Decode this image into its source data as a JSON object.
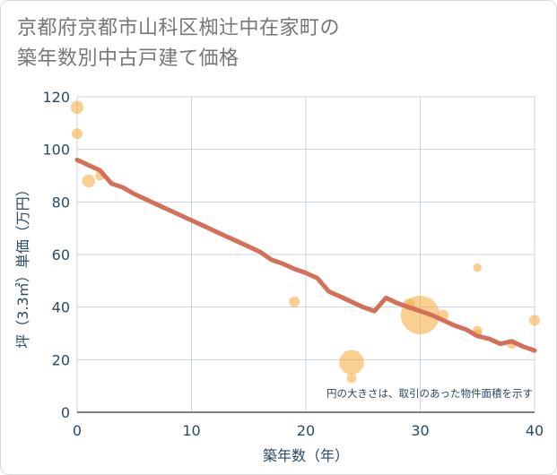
{
  "title_lines": [
    "京都府京都市山科区椥辻中在家町の",
    "築年数別中古戸建て価格"
  ],
  "colors": {
    "grid": "#c9d3dd",
    "bubble": "#f5b04a",
    "line": "#d4705a",
    "text": "#2b4a63",
    "title": "#777777"
  },
  "chart_data": {
    "type": "scatter",
    "title": "京都府京都市山科区椥辻中在家町の築年数別中古戸建て価格",
    "xlabel": "築年数（年）",
    "ylabel": "坪（3.3㎡）単価（万円）",
    "xlim": [
      0,
      40
    ],
    "ylim": [
      0,
      120
    ],
    "xticks": [
      0,
      10,
      20,
      30,
      40
    ],
    "yticks": [
      0,
      20,
      40,
      60,
      80,
      100,
      120
    ],
    "note": "円の大きさは、取引のあった物件面積を示す",
    "bubbles": [
      {
        "x": 0,
        "y": 116,
        "size": 1.2
      },
      {
        "x": 0,
        "y": 106,
        "size": 1.0
      },
      {
        "x": 1,
        "y": 88,
        "size": 1.2
      },
      {
        "x": 2,
        "y": 90,
        "size": 0.9
      },
      {
        "x": 19,
        "y": 42,
        "size": 1.0
      },
      {
        "x": 24,
        "y": 19,
        "size": 2.3
      },
      {
        "x": 24,
        "y": 13,
        "size": 0.9
      },
      {
        "x": 29,
        "y": 41,
        "size": 1.1
      },
      {
        "x": 30,
        "y": 37,
        "size": 3.6
      },
      {
        "x": 32,
        "y": 37,
        "size": 1.0
      },
      {
        "x": 35,
        "y": 55,
        "size": 0.8
      },
      {
        "x": 35,
        "y": 31,
        "size": 0.9
      },
      {
        "x": 35,
        "y": 30,
        "size": 0.8
      },
      {
        "x": 38,
        "y": 26,
        "size": 0.9
      },
      {
        "x": 40,
        "y": 35,
        "size": 1.0
      }
    ],
    "trend": {
      "x": [
        0,
        1,
        2,
        3,
        4,
        5,
        6,
        7,
        8,
        9,
        10,
        11,
        12,
        13,
        14,
        15,
        16,
        17,
        18,
        19,
        20,
        21,
        22,
        23,
        24,
        25,
        26,
        27,
        28,
        29,
        30,
        31,
        32,
        33,
        34,
        35,
        36,
        37,
        38,
        39,
        40
      ],
      "y": [
        96,
        94,
        92,
        87,
        85.5,
        83,
        81,
        79,
        77,
        75,
        73,
        71,
        69,
        67,
        65,
        63,
        61,
        58,
        56.5,
        54.5,
        53,
        51,
        46,
        44,
        42,
        40,
        38.5,
        43.5,
        41.5,
        40,
        38.5,
        37,
        35,
        33,
        31.5,
        29,
        28,
        26,
        27,
        25,
        23.5
      ]
    }
  }
}
